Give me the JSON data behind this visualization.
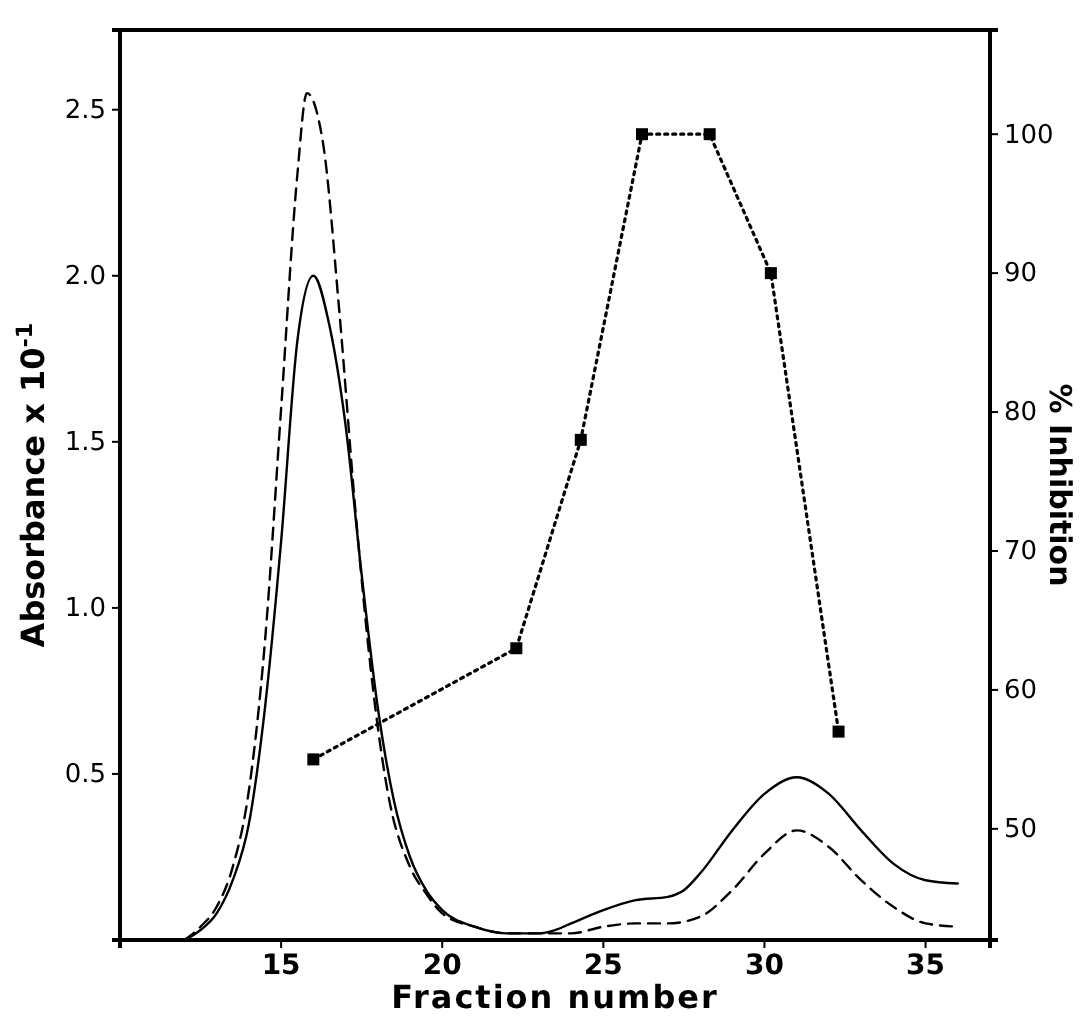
{
  "chart_data": {
    "type": "line",
    "xlabel": "Fraction number",
    "ylabel": "Absorbance x 10$^{-1}$",
    "y2label": "% Inhibition",
    "xlim": [
      10,
      37
    ],
    "xticks": [
      15,
      20,
      25,
      30,
      35
    ],
    "ylim": [
      0,
      2.74
    ],
    "yticks": [
      0.5,
      {
        "value": 1,
        "label": "1.0"
      },
      {
        "value": 1.5,
        "label": "1.5"
      },
      {
        "value": 2,
        "label": "2.0"
      },
      {
        "value": 2.5,
        "label": "2.5"
      }
    ],
    "y2lim": [
      42,
      107.5
    ],
    "y2ticks": [
      50,
      60,
      70,
      80,
      90,
      100
    ],
    "series": [
      {
        "color": "#000000",
        "line_style": "solid",
        "marker": "none",
        "x": [
          12,
          12.5,
          13,
          13.5,
          14,
          14.5,
          15,
          15.5,
          16,
          16.5,
          17,
          17.5,
          18,
          18.5,
          19,
          19.5,
          20,
          21,
          22,
          23,
          23.5,
          24,
          25,
          26,
          27,
          27.5,
          28,
          29,
          30,
          31,
          32,
          33,
          34,
          35,
          36
        ],
        "values": [
          0,
          0.03,
          0.08,
          0.18,
          0.35,
          0.7,
          1.2,
          1.8,
          2.0,
          1.85,
          1.55,
          1.1,
          0.7,
          0.42,
          0.25,
          0.15,
          0.09,
          0.04,
          0.02,
          0.02,
          0.03,
          0.05,
          0.09,
          0.12,
          0.13,
          0.15,
          0.2,
          0.33,
          0.44,
          0.49,
          0.44,
          0.33,
          0.23,
          0.18,
          0.17
        ]
      },
      {
        "color": "#000000",
        "line_style": "dashed",
        "marker": "none",
        "x": [
          12,
          12.5,
          13,
          13.5,
          14,
          14.5,
          15,
          15.5,
          15.8,
          16.3,
          16.8,
          17.3,
          17.8,
          18.3,
          19,
          19.5,
          20,
          21,
          22,
          23,
          24,
          25,
          26,
          27,
          28,
          29,
          30,
          31,
          32,
          33,
          34,
          35,
          36
        ],
        "values": [
          0,
          0.04,
          0.1,
          0.22,
          0.45,
          0.9,
          1.6,
          2.3,
          2.55,
          2.4,
          1.9,
          1.3,
          0.8,
          0.45,
          0.22,
          0.14,
          0.08,
          0.04,
          0.02,
          0.02,
          0.02,
          0.04,
          0.05,
          0.05,
          0.07,
          0.15,
          0.26,
          0.33,
          0.28,
          0.18,
          0.1,
          0.05,
          0.04
        ]
      },
      {
        "axis": "y2",
        "color": "#000000",
        "line_style": "dotted",
        "marker": "square",
        "x": [
          16,
          22.3,
          24.3,
          26.2,
          28.3,
          30.2,
          32.3
        ],
        "values": [
          55,
          63,
          78,
          100,
          100,
          90,
          57
        ]
      }
    ]
  }
}
